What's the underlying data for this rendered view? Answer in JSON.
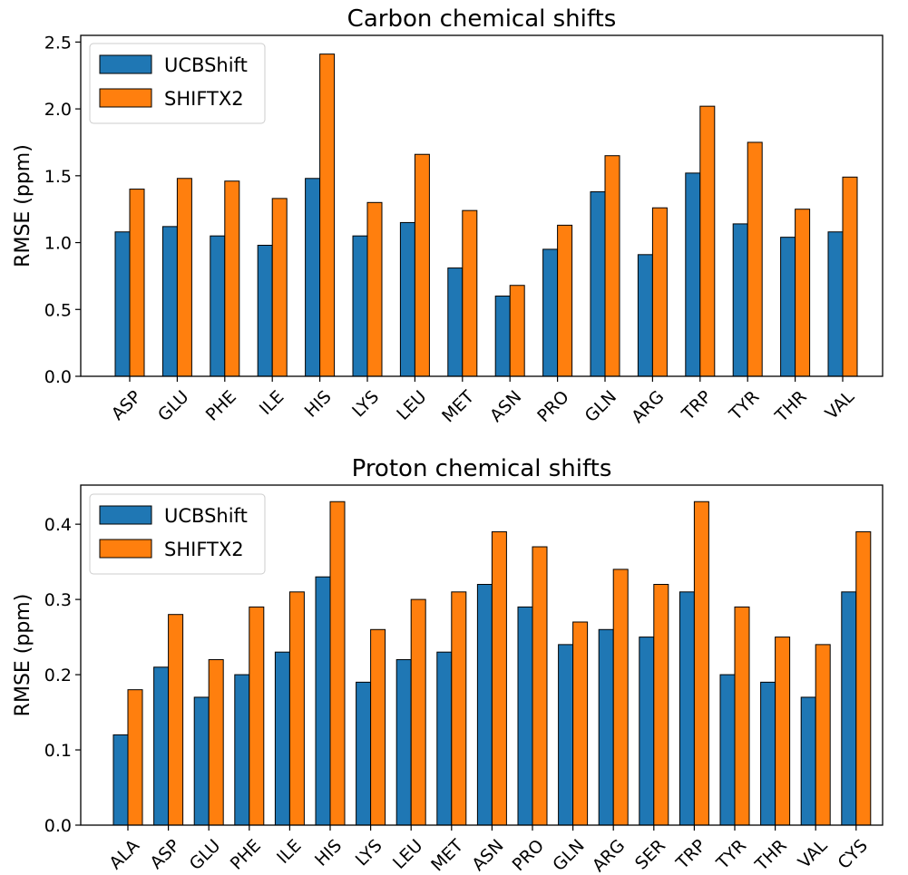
{
  "chart_data": [
    {
      "type": "bar",
      "title": "Carbon chemical shifts",
      "xlabel": "",
      "ylabel": "RMSE (ppm)",
      "ylim": [
        0,
        2.55
      ],
      "yticks": [
        0.0,
        0.5,
        1.0,
        1.5,
        2.0,
        2.5
      ],
      "ytick_labels": [
        "0.0",
        "0.5",
        "1.0",
        "1.5",
        "2.0",
        "2.5"
      ],
      "categories": [
        "ASP",
        "GLU",
        "PHE",
        "ILE",
        "HIS",
        "LYS",
        "LEU",
        "MET",
        "ASN",
        "PRO",
        "GLN",
        "ARG",
        "TRP",
        "TYR",
        "THR",
        "VAL"
      ],
      "series": [
        {
          "name": "UCBShift",
          "color": "#1f77b4",
          "values": [
            1.08,
            1.12,
            1.05,
            0.98,
            1.48,
            1.05,
            1.15,
            0.81,
            0.6,
            0.95,
            1.38,
            0.91,
            1.52,
            1.14,
            1.04,
            1.08
          ]
        },
        {
          "name": "SHIFTX2",
          "color": "#ff7f0e",
          "values": [
            1.4,
            1.48,
            1.46,
            1.33,
            2.41,
            1.3,
            1.66,
            1.24,
            0.68,
            1.13,
            1.65,
            1.26,
            2.02,
            1.75,
            1.25,
            1.49
          ]
        }
      ],
      "legend": "top-left",
      "grid": false
    },
    {
      "type": "bar",
      "title": "Proton chemical shifts",
      "xlabel": "",
      "ylabel": "RMSE (ppm)",
      "ylim": [
        0,
        0.452
      ],
      "yticks": [
        0.0,
        0.1,
        0.2,
        0.3,
        0.4
      ],
      "ytick_labels": [
        "0.0",
        "0.1",
        "0.2",
        "0.3",
        "0.4"
      ],
      "categories": [
        "ALA",
        "ASP",
        "GLU",
        "PHE",
        "ILE",
        "HIS",
        "LYS",
        "LEU",
        "MET",
        "ASN",
        "PRO",
        "GLN",
        "ARG",
        "SER",
        "TRP",
        "TYR",
        "THR",
        "VAL",
        "CYS"
      ],
      "series": [
        {
          "name": "UCBShift",
          "color": "#1f77b4",
          "values": [
            0.12,
            0.21,
            0.17,
            0.2,
            0.23,
            0.33,
            0.19,
            0.22,
            0.23,
            0.32,
            0.29,
            0.24,
            0.26,
            0.25,
            0.31,
            0.2,
            0.19,
            0.17,
            0.31
          ]
        },
        {
          "name": "SHIFTX2",
          "color": "#ff7f0e",
          "values": [
            0.18,
            0.28,
            0.22,
            0.29,
            0.31,
            0.43,
            0.26,
            0.3,
            0.31,
            0.39,
            0.37,
            0.27,
            0.34,
            0.32,
            0.43,
            0.29,
            0.25,
            0.24,
            0.39
          ]
        }
      ],
      "legend": "top-left",
      "grid": false
    }
  ]
}
